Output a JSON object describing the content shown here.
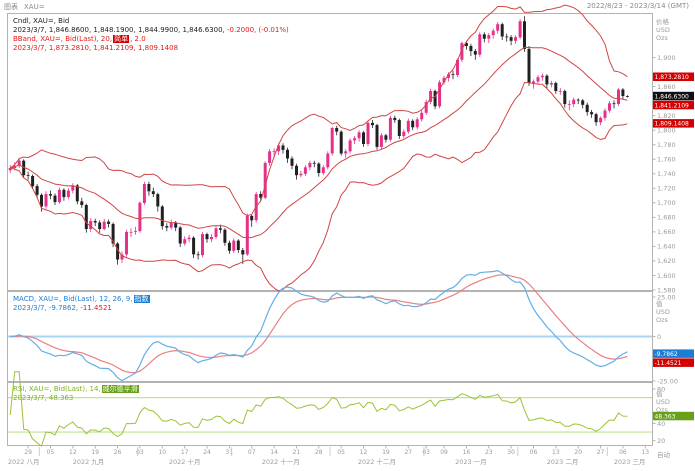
{
  "window": {
    "app_label": "图表",
    "symbol": "XAU=",
    "date_range": "2022/8/23 - 2023/3/14 (GMT)",
    "auto_label": "自动"
  },
  "colors": {
    "up": "#e6308a",
    "down": "#202020",
    "band": "#d04545",
    "macd": "#66aee6",
    "signal": "#ea8080",
    "zero_line": "#a8d4f4",
    "rsi": "#9ac33c",
    "rsi_level": "#c2e391",
    "axis_text": "#9b9b9b",
    "border": "#b3b3b3",
    "badge_red": "#d40000",
    "badge_black": "#111111",
    "badge_blue": "#1a7fd4",
    "badge_green": "#69a019"
  },
  "price_pane": {
    "axis_header": [
      "价格",
      "USD",
      "Ozs"
    ],
    "legend": {
      "row1": "Cndl, XAU=, Bid",
      "row2_black": "2023/3/7, 1,846.8600, 1,848.1900, 1,844.9900, 1,846.6300,",
      "row2_red": "-0.2000, (-0.01%)",
      "row3_pre": "BBand, XAU=, Bid(Last), 20,",
      "row3_box": "简单",
      "row3_post": ", 2.0",
      "row4": "2023/3/7, 1,873.2810, 1,841.2109, 1,809.1408"
    },
    "badges": [
      {
        "v": 1873.281,
        "label": "1,873.2810",
        "bg": "red"
      },
      {
        "v": 1846.63,
        "label": "1,846.6300",
        "bg": "black"
      },
      {
        "v": 1841.2109,
        "label": "1,841.2109",
        "bg": "red"
      },
      {
        "v": 1809.1408,
        "label": "1,809.1408",
        "bg": "red"
      }
    ]
  },
  "macd_pane": {
    "axis_header": [
      "值",
      "USD",
      "Ozs"
    ],
    "legend": {
      "row1_pre": "MACD, XAU=, Bid(Last), 12, 26, 9,",
      "row1_box": "指数",
      "row2_blue": "2023/3/7, -9.7862,",
      "row2_red": "-11.4521"
    },
    "badges": [
      {
        "v": -9.7862,
        "label": "-9.7862",
        "bg": "blue"
      },
      {
        "v": -11.4521,
        "label": "-11.4521",
        "bg": "red"
      }
    ]
  },
  "rsi_pane": {
    "axis_header": [
      "值",
      "USD",
      "Ozs"
    ],
    "legend": {
      "row1_pre": "RSI, XAU=, Bid(Last), 14,",
      "row1_box": "威尔德平滑",
      "row2": "2023/3/7, 48.363"
    },
    "badges": [
      {
        "v": 48.363,
        "label": "48.363",
        "bg": "green"
      }
    ]
  },
  "chart_data": {
    "type": "candlestick",
    "symbol": "XAU=",
    "interval": "daily",
    "date_range": "2022/8/23 - 2023/3/14 (GMT)",
    "total_slots": 144,
    "panes": {
      "price": {
        "ylim": [
          1580,
          1960
        ],
        "yticks": [
          {
            "v": 1900,
            "t": "1,900"
          },
          {
            "v": 1860,
            "t": "1,860"
          },
          {
            "v": 1820,
            "t": "1,820"
          },
          {
            "v": 1800,
            "t": "1,800"
          },
          {
            "v": 1780,
            "t": "1,780"
          },
          {
            "v": 1760,
            "t": "1,760"
          },
          {
            "v": 1740,
            "t": "1,740"
          },
          {
            "v": 1720,
            "t": "1,720"
          },
          {
            "v": 1700,
            "t": "1,700"
          },
          {
            "v": 1680,
            "t": "1,680"
          },
          {
            "v": 1660,
            "t": "1,660"
          },
          {
            "v": 1640,
            "t": "1,640"
          },
          {
            "v": 1620,
            "t": "1,620"
          },
          {
            "v": 1600,
            "t": "1,600"
          },
          {
            "v": 1580,
            "t": "1,580"
          }
        ],
        "bollinger": {
          "period": 20,
          "mult": 2,
          "last_upper": 1873.281,
          "last_mid": 1841.2109,
          "last_lower": 1809.1408
        },
        "last_close": 1846.63
      },
      "macd": {
        "params": [
          12,
          26,
          9
        ],
        "ylim": [
          -25,
          25
        ],
        "yticks": [
          {
            "v": 25,
            "t": "25.00"
          },
          {
            "v": 0,
            "t": "0"
          },
          {
            "v": -25,
            "t": "-25.00"
          }
        ],
        "last_macd": -9.7862,
        "last_signal": -11.4521
      },
      "rsi": {
        "period": 14,
        "ylim": [
          15,
          87
        ],
        "yticks": [
          {
            "v": 80,
            "t": "80"
          },
          {
            "v": 40,
            "t": "40"
          },
          {
            "v": 20,
            "t": "20"
          }
        ],
        "hlines": [
          70,
          30
        ],
        "last": 48.363
      }
    },
    "x_axis": {
      "week_ticks": [
        {
          "i": 4,
          "l": "29"
        },
        {
          "i": 9,
          "l": "05"
        },
        {
          "i": 14,
          "l": "12"
        },
        {
          "i": 19,
          "l": "19"
        },
        {
          "i": 24,
          "l": "26"
        },
        {
          "i": 29,
          "l": "03"
        },
        {
          "i": 34,
          "l": "10"
        },
        {
          "i": 39,
          "l": "17"
        },
        {
          "i": 44,
          "l": "24"
        },
        {
          "i": 49,
          "l": "31"
        },
        {
          "i": 54,
          "l": "07"
        },
        {
          "i": 59,
          "l": "14"
        },
        {
          "i": 64,
          "l": "21"
        },
        {
          "i": 69,
          "l": "28"
        },
        {
          "i": 74,
          "l": "05"
        },
        {
          "i": 79,
          "l": "12"
        },
        {
          "i": 84,
          "l": "19"
        },
        {
          "i": 89,
          "l": "27"
        },
        {
          "i": 93,
          "l": "03"
        },
        {
          "i": 97,
          "l": "09"
        },
        {
          "i": 102,
          "l": "16"
        },
        {
          "i": 107,
          "l": "23"
        },
        {
          "i": 112,
          "l": "30"
        },
        {
          "i": 117,
          "l": "06"
        },
        {
          "i": 122,
          "l": "13"
        },
        {
          "i": 127,
          "l": "20"
        },
        {
          "i": 132,
          "l": "27"
        },
        {
          "i": 137,
          "l": "06"
        },
        {
          "i": 142,
          "l": "13"
        }
      ],
      "months": [
        {
          "i0": 0,
          "i1": 6,
          "label": "2022 八月"
        },
        {
          "i0": 7,
          "i1": 28,
          "label": "2022 九月"
        },
        {
          "i0": 29,
          "i1": 49,
          "label": "2022 十月"
        },
        {
          "i0": 50,
          "i1": 71,
          "label": "2022 十一月"
        },
        {
          "i0": 72,
          "i1": 92,
          "label": "2022 十二月"
        },
        {
          "i0": 93,
          "i1": 113,
          "label": "2023 一月"
        },
        {
          "i0": 114,
          "i1": 133,
          "label": "2023 二月"
        },
        {
          "i0": 134,
          "i1": 143,
          "label": "2023 三月"
        }
      ]
    },
    "candles": [
      [
        1745,
        1752,
        1741,
        1748
      ],
      [
        1748,
        1756,
        1745,
        1751
      ],
      [
        1751,
        1762,
        1748,
        1758
      ],
      [
        1758,
        1760,
        1734,
        1738
      ],
      [
        1738,
        1743,
        1732,
        1737
      ],
      [
        1737,
        1739,
        1719,
        1723
      ],
      [
        1723,
        1726,
        1708,
        1711
      ],
      [
        1711,
        1713,
        1688,
        1695
      ],
      [
        1695,
        1716,
        1692,
        1712
      ],
      [
        1712,
        1717,
        1705,
        1710
      ],
      [
        1710,
        1713,
        1697,
        1701
      ],
      [
        1701,
        1721,
        1699,
        1718
      ],
      [
        1718,
        1720,
        1703,
        1708
      ],
      [
        1708,
        1720,
        1705,
        1717
      ],
      [
        1717,
        1727,
        1713,
        1724
      ],
      [
        1724,
        1726,
        1698,
        1702
      ],
      [
        1702,
        1707,
        1693,
        1697
      ],
      [
        1697,
        1699,
        1659,
        1664
      ],
      [
        1664,
        1679,
        1660,
        1675
      ],
      [
        1675,
        1678,
        1668,
        1673
      ],
      [
        1673,
        1676,
        1659,
        1664
      ],
      [
        1664,
        1678,
        1662,
        1674
      ],
      [
        1674,
        1677,
        1666,
        1671
      ],
      [
        1671,
        1673,
        1639,
        1644
      ],
      [
        1644,
        1646,
        1615,
        1622
      ],
      [
        1622,
        1633,
        1617,
        1629
      ],
      [
        1629,
        1663,
        1626,
        1660
      ],
      [
        1660,
        1665,
        1653,
        1660
      ],
      [
        1660,
        1667,
        1656,
        1661
      ],
      [
        1661,
        1702,
        1659,
        1700
      ],
      [
        1700,
        1729,
        1697,
        1726
      ],
      [
        1726,
        1729,
        1710,
        1716
      ],
      [
        1716,
        1721,
        1708,
        1712
      ],
      [
        1712,
        1714,
        1688,
        1695
      ],
      [
        1695,
        1697,
        1663,
        1668
      ],
      [
        1668,
        1672,
        1661,
        1666
      ],
      [
        1666,
        1677,
        1663,
        1673
      ],
      [
        1673,
        1675,
        1661,
        1666
      ],
      [
        1666,
        1668,
        1639,
        1644
      ],
      [
        1644,
        1654,
        1641,
        1650
      ],
      [
        1650,
        1656,
        1646,
        1652
      ],
      [
        1652,
        1654,
        1624,
        1629
      ],
      [
        1629,
        1633,
        1622,
        1628
      ],
      [
        1628,
        1660,
        1625,
        1657
      ],
      [
        1657,
        1659,
        1645,
        1650
      ],
      [
        1650,
        1657,
        1646,
        1653
      ],
      [
        1653,
        1668,
        1650,
        1665
      ],
      [
        1665,
        1670,
        1658,
        1663
      ],
      [
        1663,
        1665,
        1641,
        1645
      ],
      [
        1645,
        1648,
        1630,
        1634
      ],
      [
        1634,
        1651,
        1631,
        1648
      ],
      [
        1648,
        1650,
        1631,
        1635
      ],
      [
        1635,
        1638,
        1616,
        1629
      ],
      [
        1629,
        1685,
        1627,
        1682
      ],
      [
        1682,
        1684,
        1667,
        1676
      ],
      [
        1676,
        1715,
        1673,
        1712
      ],
      [
        1712,
        1716,
        1702,
        1707
      ],
      [
        1707,
        1757,
        1705,
        1755
      ],
      [
        1755,
        1774,
        1751,
        1771
      ],
      [
        1771,
        1775,
        1762,
        1771
      ],
      [
        1771,
        1782,
        1766,
        1779
      ],
      [
        1779,
        1782,
        1768,
        1773
      ],
      [
        1773,
        1776,
        1755,
        1761
      ],
      [
        1761,
        1764,
        1746,
        1751
      ],
      [
        1751,
        1754,
        1732,
        1738
      ],
      [
        1738,
        1744,
        1735,
        1740
      ],
      [
        1740,
        1752,
        1737,
        1749
      ],
      [
        1749,
        1758,
        1745,
        1755
      ],
      [
        1755,
        1758,
        1749,
        1754
      ],
      [
        1754,
        1756,
        1736,
        1741
      ],
      [
        1741,
        1752,
        1738,
        1749
      ],
      [
        1749,
        1771,
        1746,
        1768
      ],
      [
        1768,
        1805,
        1765,
        1803
      ],
      [
        1803,
        1806,
        1793,
        1798
      ],
      [
        1798,
        1800,
        1765,
        1768
      ],
      [
        1768,
        1774,
        1762,
        1771
      ],
      [
        1771,
        1789,
        1768,
        1786
      ],
      [
        1786,
        1792,
        1781,
        1789
      ],
      [
        1789,
        1800,
        1784,
        1797
      ],
      [
        1797,
        1799,
        1777,
        1781
      ],
      [
        1781,
        1813,
        1778,
        1810
      ],
      [
        1810,
        1814,
        1803,
        1807
      ],
      [
        1807,
        1809,
        1773,
        1777
      ],
      [
        1777,
        1796,
        1774,
        1793
      ],
      [
        1793,
        1795,
        1783,
        1787
      ],
      [
        1787,
        1820,
        1784,
        1817
      ],
      [
        1817,
        1820,
        1810,
        1814
      ],
      [
        1814,
        1816,
        1788,
        1792
      ],
      [
        1792,
        1801,
        1789,
        1798
      ],
      [
        1798,
        1816,
        1795,
        1813
      ],
      [
        1813,
        1815,
        1800,
        1804
      ],
      [
        1804,
        1818,
        1801,
        1815
      ],
      [
        1815,
        1827,
        1812,
        1824
      ],
      [
        1824,
        1842,
        1821,
        1839
      ],
      [
        1839,
        1857,
        1836,
        1854
      ],
      [
        1854,
        1856,
        1829,
        1833
      ],
      [
        1833,
        1869,
        1830,
        1866
      ],
      [
        1866,
        1875,
        1863,
        1872
      ],
      [
        1872,
        1880,
        1867,
        1877
      ],
      [
        1877,
        1882,
        1870,
        1876
      ],
      [
        1876,
        1899,
        1873,
        1897
      ],
      [
        1897,
        1922,
        1894,
        1920
      ],
      [
        1920,
        1923,
        1911,
        1916
      ],
      [
        1916,
        1919,
        1902,
        1909
      ],
      [
        1909,
        1912,
        1897,
        1904
      ],
      [
        1904,
        1935,
        1901,
        1932
      ],
      [
        1932,
        1935,
        1921,
        1926
      ],
      [
        1926,
        1934,
        1920,
        1931
      ],
      [
        1931,
        1940,
        1926,
        1937
      ],
      [
        1937,
        1949,
        1933,
        1946
      ],
      [
        1946,
        1948,
        1924,
        1929
      ],
      [
        1929,
        1933,
        1922,
        1928
      ],
      [
        1928,
        1931,
        1917,
        1923
      ],
      [
        1923,
        1931,
        1919,
        1928
      ],
      [
        1928,
        1953,
        1925,
        1950
      ],
      [
        1950,
        1957,
        1908,
        1912
      ],
      [
        1912,
        1916,
        1861,
        1865
      ],
      [
        1865,
        1870,
        1857,
        1867
      ],
      [
        1867,
        1876,
        1863,
        1873
      ],
      [
        1873,
        1878,
        1868,
        1875
      ],
      [
        1875,
        1877,
        1858,
        1863
      ],
      [
        1863,
        1868,
        1859,
        1865
      ],
      [
        1865,
        1867,
        1850,
        1854
      ],
      [
        1854,
        1858,
        1849,
        1854
      ],
      [
        1854,
        1856,
        1831,
        1836
      ],
      [
        1836,
        1841,
        1827,
        1836
      ],
      [
        1836,
        1845,
        1832,
        1842
      ],
      [
        1842,
        1844,
        1836,
        1841
      ],
      [
        1841,
        1843,
        1830,
        1835
      ],
      [
        1835,
        1838,
        1820,
        1825
      ],
      [
        1825,
        1828,
        1817,
        1822
      ],
      [
        1822,
        1824,
        1806,
        1811
      ],
      [
        1811,
        1819,
        1807,
        1817
      ],
      [
        1817,
        1830,
        1813,
        1827
      ],
      [
        1827,
        1840,
        1824,
        1837
      ],
      [
        1837,
        1841,
        1830,
        1836
      ],
      [
        1836,
        1858,
        1833,
        1856
      ],
      [
        1856,
        1858,
        1843,
        1847
      ],
      [
        1846.86,
        1848.19,
        1844.99,
        1846.63
      ]
    ]
  }
}
